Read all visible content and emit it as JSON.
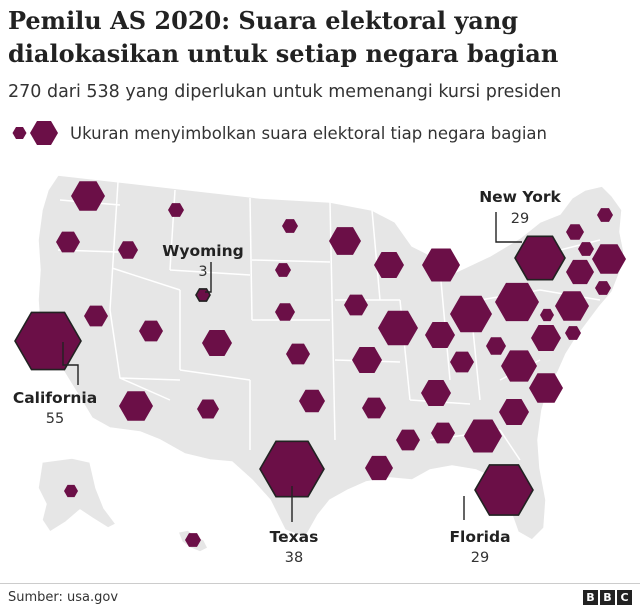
{
  "title": "Pemilu AS 2020: Suara elektoral yang dialokasikan untuk setiap negara bagian",
  "subtitle": "270 dari 538 yang diperlukan untuk memenangi kursi presiden",
  "legend": {
    "text": "Ukuran menyimbolkan suara elektoral tiap negara bagian"
  },
  "source": "Sumber: usa.gov",
  "logo_letters": [
    "B",
    "B",
    "C"
  ],
  "colors": {
    "hexagon": "#6b0f47",
    "hexagon_highlight": "#6b0f47",
    "land": "#e6e6e6",
    "border": "#ffffff",
    "label_line": "#222222"
  },
  "callouts": [
    {
      "id": "new-york",
      "name": "New York",
      "value": "29"
    },
    {
      "id": "wyoming",
      "name": "Wyoming",
      "value": "3"
    },
    {
      "id": "california",
      "name": "California",
      "value": "55"
    },
    {
      "id": "texas",
      "name": "Texas",
      "value": "38"
    },
    {
      "id": "florida",
      "name": "Florida",
      "value": "29"
    }
  ],
  "chart_data": {
    "type": "hexagon-map",
    "states": [
      {
        "state": "California",
        "votes": 55
      },
      {
        "state": "Texas",
        "votes": 38
      },
      {
        "state": "Florida",
        "votes": 29
      },
      {
        "state": "New York",
        "votes": 29
      },
      {
        "state": "Wyoming",
        "votes": 3
      }
    ]
  }
}
